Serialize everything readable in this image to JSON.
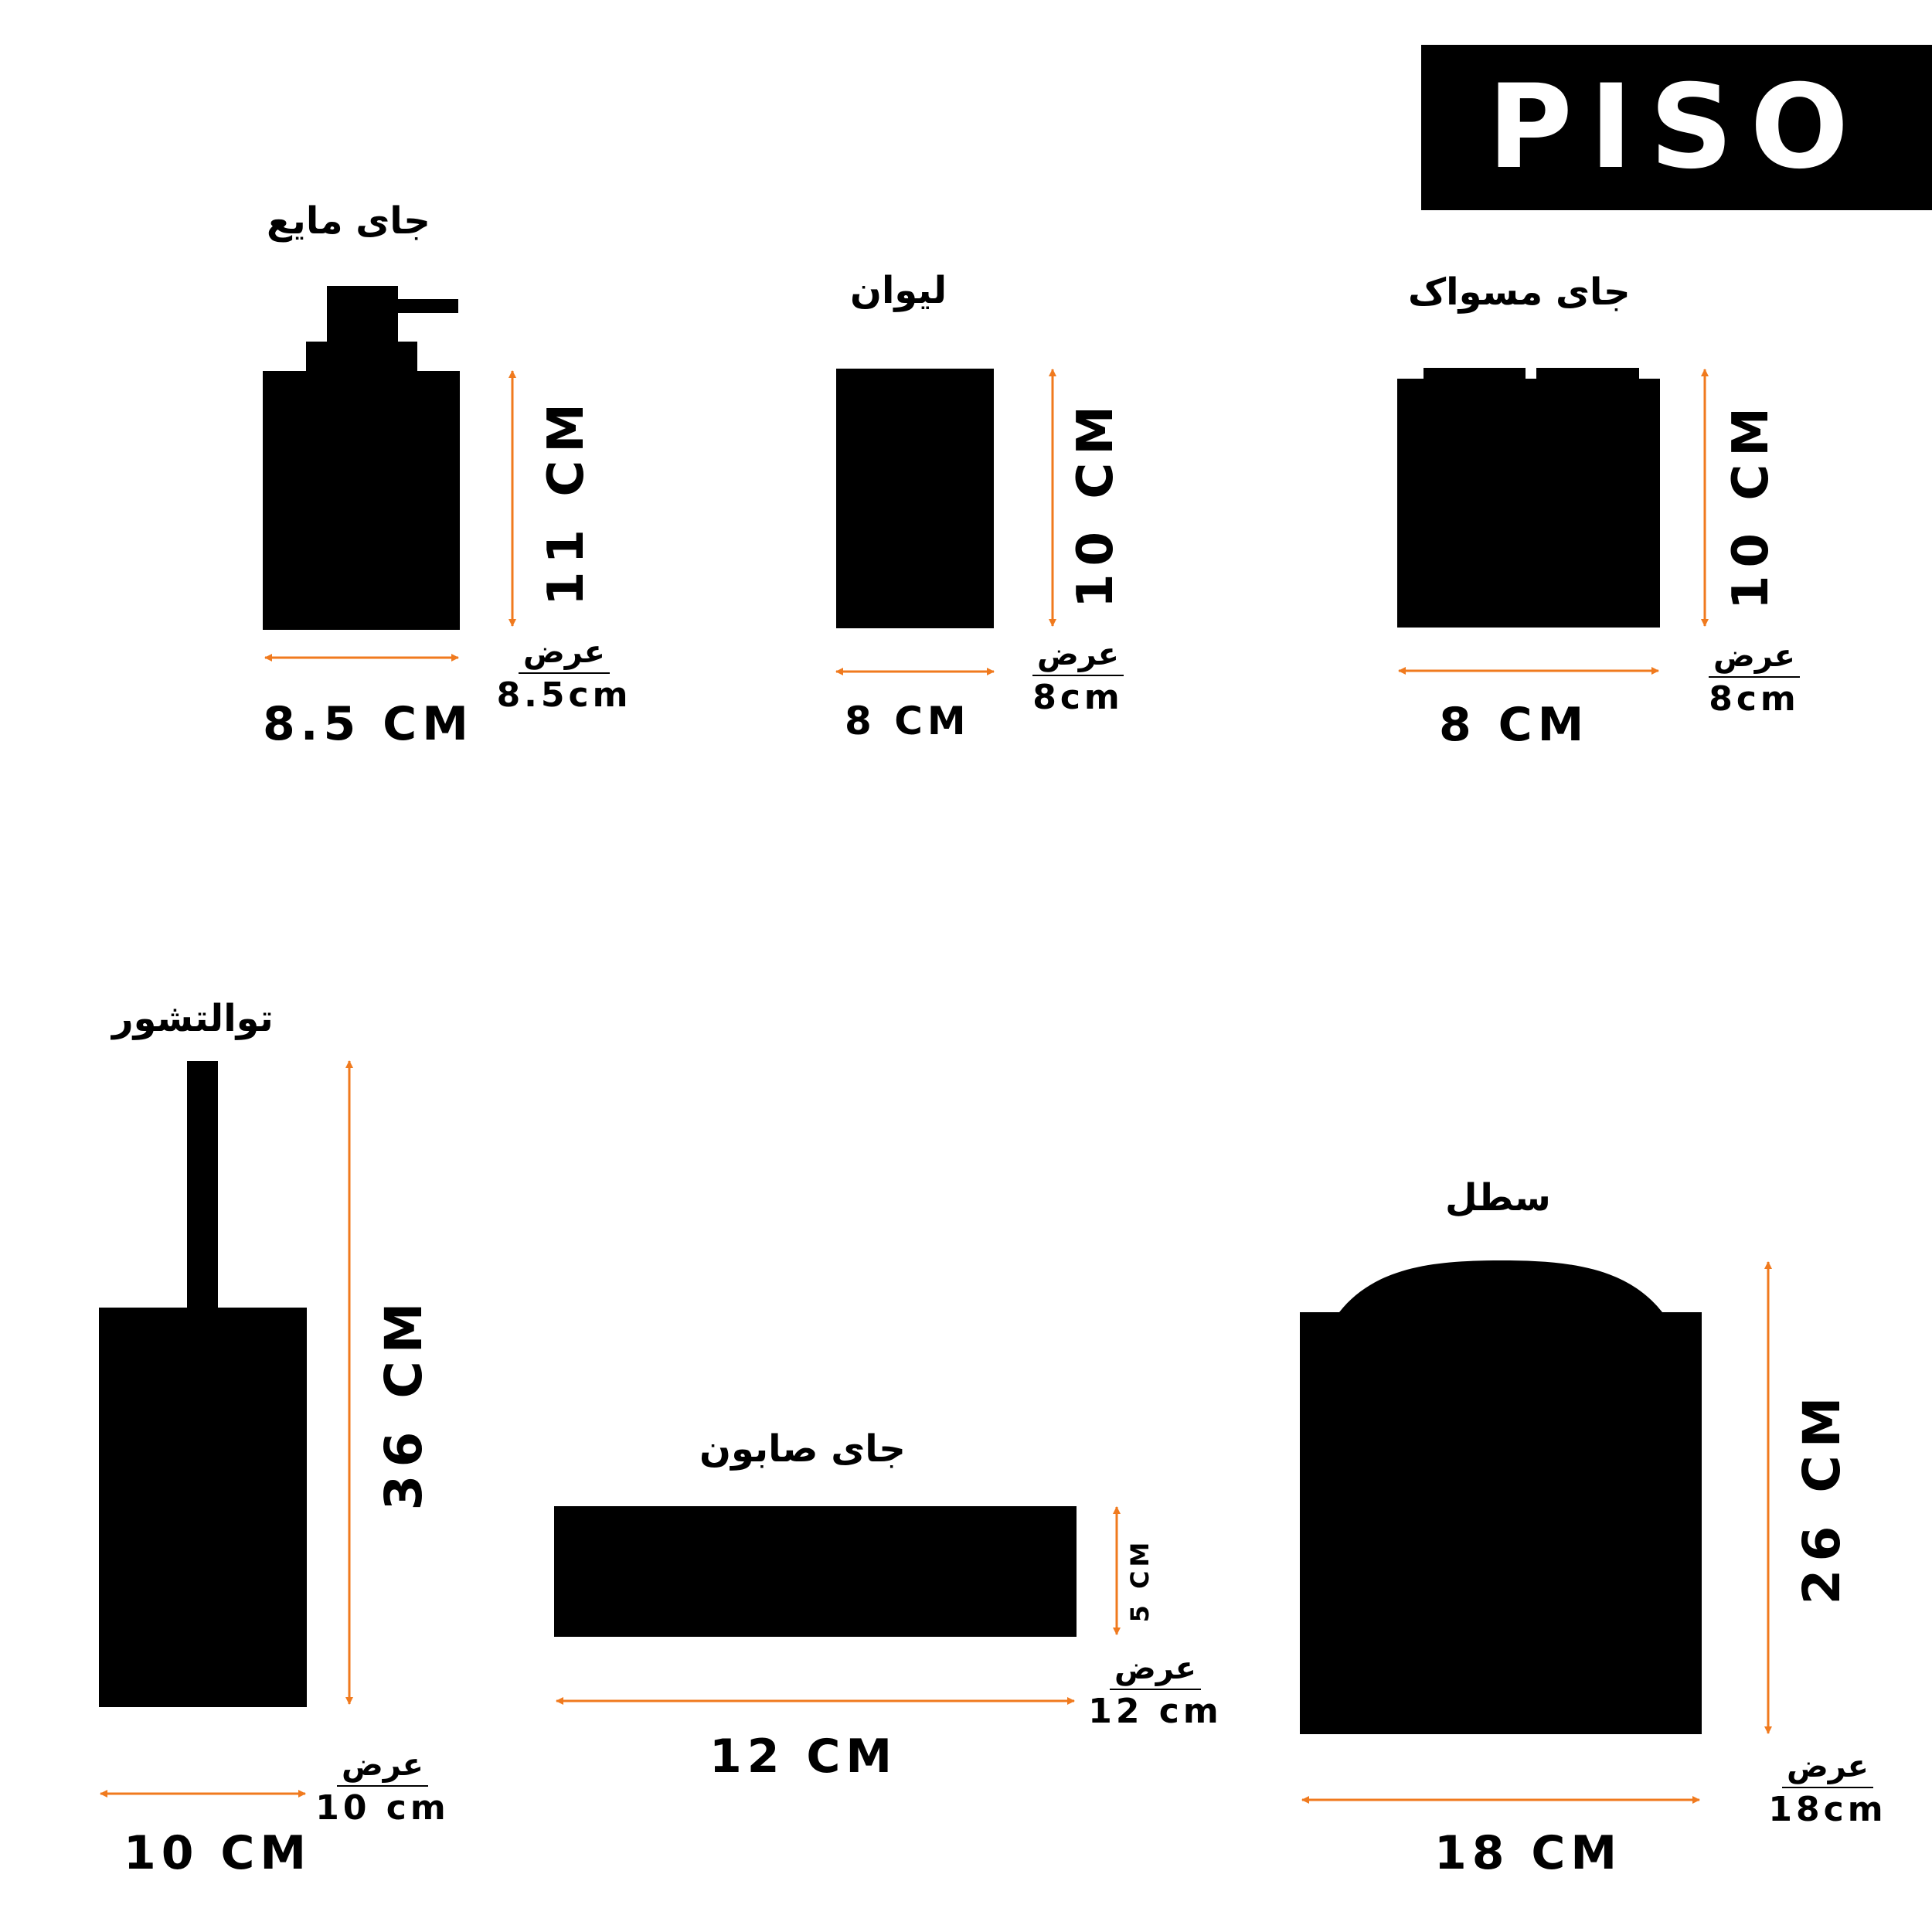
{
  "brand": {
    "name": "PISO"
  },
  "colors": {
    "arrow": "#f07a1e",
    "silhouette": "#000000",
    "brand_text": "#ffffff"
  },
  "products": {
    "liquid_dispenser": {
      "title": "جای مایع",
      "height": "11 CM",
      "width_dim": "8.5 CM",
      "width_label": "عرض",
      "width_value": "8.5cm"
    },
    "glass": {
      "title": "لیوان",
      "height": "10 CM",
      "width_dim": "8 CM",
      "width_label": "عرض",
      "width_value": "8cm"
    },
    "toothbrush_holder": {
      "title": "جای مسواک",
      "height": "10 CM",
      "width_dim": "8 CM",
      "width_label": "عرض",
      "width_value": "8cm"
    },
    "toilet_brush": {
      "title": "توالتشور",
      "height": "36 CM",
      "width_dim": "10 CM",
      "width_label": "عرض",
      "width_value": "10 cm"
    },
    "soap_dish": {
      "title": "جای صابون",
      "height": "5 CM",
      "width_dim": "12 CM",
      "width_label": "عرض",
      "width_value": "12 cm"
    },
    "bin": {
      "title": "سطل",
      "height": "26 CM",
      "width_dim": "18 CM",
      "width_label": "عرض",
      "width_value": "18cm"
    }
  }
}
